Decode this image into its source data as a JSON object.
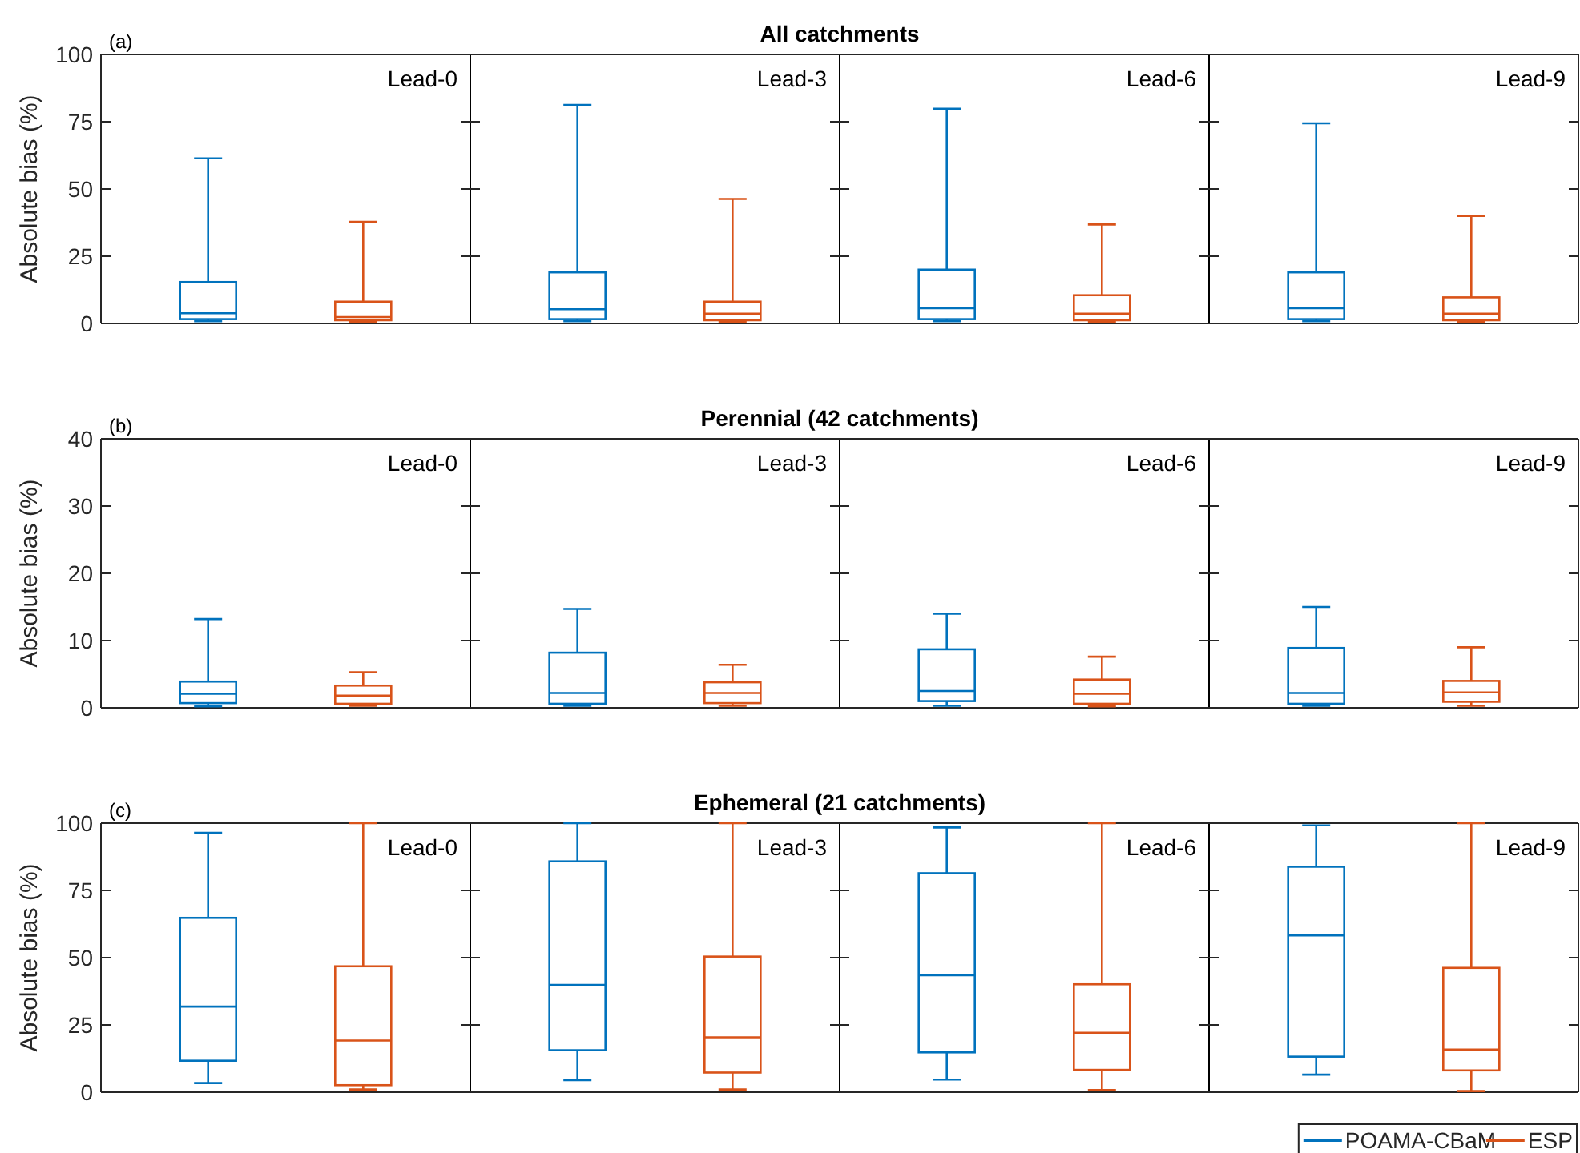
{
  "chart_data": [
    {
      "type": "box",
      "title": "All catchments",
      "annotations": [
        "(a)",
        "Lead-0",
        "Lead-3",
        "Lead-6",
        "Lead-9"
      ],
      "ylabel": "Absolute bias (%)",
      "categories": [
        null,
        null,
        null,
        null
      ],
      "ylim": [
        0,
        100
      ],
      "yticks": [
        0,
        25,
        50,
        75,
        100
      ],
      "grid": false,
      "legend": false,
      "series": [
        {
          "color": "#0072bd",
          "boxes": [
            {
              "low": 0.8,
              "q1": 1.6,
              "median": 3.8,
              "q3": 15.4,
              "high": 61.4
            },
            {
              "low": 0.8,
              "q1": 1.6,
              "median": 5.3,
              "q3": 19,
              "high": 81.2
            },
            {
              "low": 0.8,
              "q1": 1.6,
              "median": 5.7,
              "q3": 20,
              "high": 79.8
            },
            {
              "low": 0.8,
              "q1": 1.6,
              "median": 5.7,
              "q3": 19,
              "high": 74.4
            }
          ]
        },
        {
          "color": "#d95319",
          "boxes": [
            {
              "low": 0.6,
              "q1": 1.2,
              "median": 2.4,
              "q3": 8.1,
              "high": 37.8
            },
            {
              "low": 0.6,
              "q1": 1.2,
              "median": 3.6,
              "q3": 8.1,
              "high": 46.3
            },
            {
              "low": 0.6,
              "q1": 1.2,
              "median": 3.6,
              "q3": 10.5,
              "high": 36.8
            },
            {
              "low": 0.6,
              "q1": 1.2,
              "median": 3.6,
              "q3": 9.7,
              "high": 40
            }
          ]
        }
      ]
    },
    {
      "type": "box",
      "title": "Perennial (42 catchments)",
      "annotations": [
        "(b)",
        "Lead-0",
        "Lead-3",
        "Lead-6",
        "Lead-9"
      ],
      "ylabel": "Absolute bias (%)",
      "categories": [
        null,
        null,
        null,
        null
      ],
      "ylim": [
        0,
        40
      ],
      "yticks": [
        0,
        10,
        20,
        30,
        40
      ],
      "grid": false,
      "legend": false,
      "series": [
        {
          "color": "#0072bd",
          "boxes": [
            {
              "low": 0.2,
              "q1": 0.7,
              "median": 2.1,
              "q3": 3.9,
              "high": 13.2
            },
            {
              "low": 0.3,
              "q1": 0.6,
              "median": 2.2,
              "q3": 8.2,
              "high": 14.7
            },
            {
              "low": 0.3,
              "q1": 1,
              "median": 2.5,
              "q3": 8.7,
              "high": 14
            },
            {
              "low": 0.3,
              "q1": 0.6,
              "median": 2.2,
              "q3": 8.9,
              "high": 15
            }
          ]
        },
        {
          "color": "#d95319",
          "boxes": [
            {
              "low": 0.3,
              "q1": 0.6,
              "median": 1.8,
              "q3": 3.3,
              "high": 5.3
            },
            {
              "low": 0.3,
              "q1": 0.7,
              "median": 2.2,
              "q3": 3.8,
              "high": 6.4
            },
            {
              "low": 0.2,
              "q1": 0.6,
              "median": 2.1,
              "q3": 4.2,
              "high": 7.6
            },
            {
              "low": 0.3,
              "q1": 0.9,
              "median": 2.3,
              "q3": 4,
              "high": 9
            }
          ]
        }
      ]
    },
    {
      "type": "box",
      "title": "Ephemeral (21 catchments)",
      "annotations": [
        "(c)",
        "Lead-0",
        "Lead-3",
        "Lead-6",
        "Lead-9"
      ],
      "ylabel": "Absolute bias (%)",
      "categories": [
        null,
        null,
        null,
        null
      ],
      "ylim": [
        0,
        100
      ],
      "yticks": [
        0,
        25,
        50,
        75,
        100
      ],
      "grid": false,
      "legend": "bottom right",
      "series": [
        {
          "name": "POAMA-CBaM",
          "color": "#0072bd",
          "boxes": [
            {
              "low": 3.4,
              "q1": 11.7,
              "median": 31.8,
              "q3": 64.8,
              "high": 96.4
            },
            {
              "low": 4.5,
              "q1": 15.6,
              "median": 39.9,
              "q3": 85.8,
              "high": 100
            },
            {
              "low": 4.7,
              "q1": 14.8,
              "median": 43.5,
              "q3": 81.4,
              "high": 98.4
            },
            {
              "low": 6.5,
              "q1": 13.2,
              "median": 58.3,
              "q3": 83.8,
              "high": 99.2
            }
          ]
        },
        {
          "name": "ESP",
          "color": "#d95319",
          "boxes": [
            {
              "low": 1,
              "q1": 2.6,
              "median": 19.2,
              "q3": 46.8,
              "high": 100
            },
            {
              "low": 1,
              "q1": 7.3,
              "median": 20.4,
              "q3": 50.4,
              "high": 100
            },
            {
              "low": 0.8,
              "q1": 8.3,
              "median": 22.1,
              "q3": 40.1,
              "high": 100
            },
            {
              "low": 0.4,
              "q1": 8.1,
              "median": 15.8,
              "q3": 46.2,
              "high": 100
            }
          ]
        }
      ]
    }
  ]
}
